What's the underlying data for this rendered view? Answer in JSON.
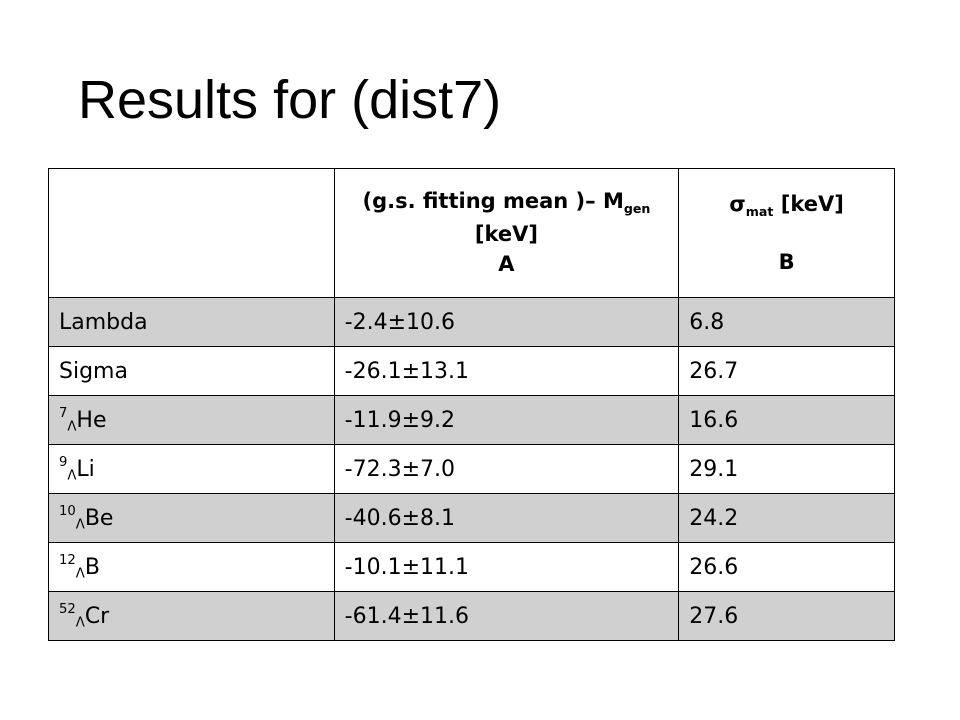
{
  "title": "Results for (dist7)",
  "table": {
    "header": {
      "col_a_line1_pre": "(g.s. fitting mean )– M",
      "col_a_line1_sub": "gen",
      "col_a_line2": "[keV]",
      "col_a_letter": "A",
      "col_b_sigma": "σ",
      "col_b_sub": "mat",
      "col_b_unit": " [keV]",
      "col_b_letter": "B"
    },
    "rows": [
      {
        "name": "Lambda",
        "mass": "",
        "hyp": "",
        "base": "",
        "a": "-2.4±10.6",
        "b": "6.8"
      },
      {
        "name": "Sigma",
        "mass": "",
        "hyp": "",
        "base": "",
        "a": "-26.1±13.1",
        "b": "26.7"
      },
      {
        "name": "",
        "mass": "7",
        "hyp": "Λ",
        "base": "He",
        "a": "-11.9±9.2",
        "b": "16.6"
      },
      {
        "name": "",
        "mass": "9",
        "hyp": "Λ",
        "base": "Li",
        "a": "-72.3±7.0",
        "b": "29.1"
      },
      {
        "name": "",
        "mass": "10",
        "hyp": "Λ",
        "base": "Be",
        "a": "-40.6±8.1",
        "b": "24.2"
      },
      {
        "name": "",
        "mass": "12",
        "hyp": "Λ",
        "base": "B",
        "a": "-10.1±11.1",
        "b": "26.6"
      },
      {
        "name": "",
        "mass": "52",
        "hyp": "Λ",
        "base": "Cr",
        "a": "-61.4±11.6",
        "b": "27.6"
      }
    ]
  }
}
